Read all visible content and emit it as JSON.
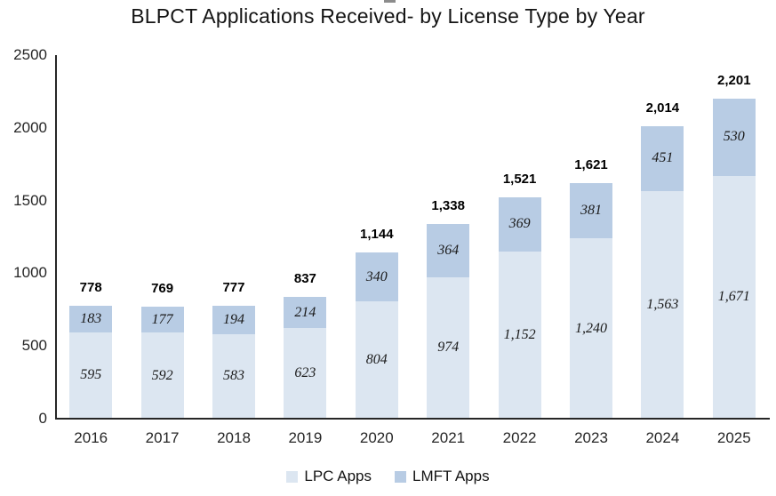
{
  "title": "BLPCT Applications Received- by License Type by Year",
  "chart_data": {
    "type": "bar",
    "stacked": true,
    "title": "BLPCT Applications Received- by License Type by Year",
    "xlabel": "",
    "ylabel": "",
    "categories": [
      "2016",
      "2017",
      "2018",
      "2019",
      "2020",
      "2021",
      "2022",
      "2023",
      "2024",
      "2025"
    ],
    "series": [
      {
        "name": "LPC Apps",
        "color": "#dce6f1",
        "values": [
          595,
          592,
          583,
          623,
          804,
          974,
          1152,
          1240,
          1563,
          1671
        ]
      },
      {
        "name": "LMFT Apps",
        "color": "#b8cce4",
        "values": [
          183,
          177,
          194,
          214,
          340,
          364,
          369,
          381,
          451,
          530
        ]
      }
    ],
    "totals": [
      778,
      769,
      777,
      837,
      1144,
      1338,
      1521,
      1621,
      2014,
      2201
    ],
    "ylim": [
      0,
      2500
    ],
    "yticks": [
      0,
      500,
      1000,
      1500,
      2000,
      2500
    ],
    "grid": false,
    "legend_position": "bottom"
  }
}
